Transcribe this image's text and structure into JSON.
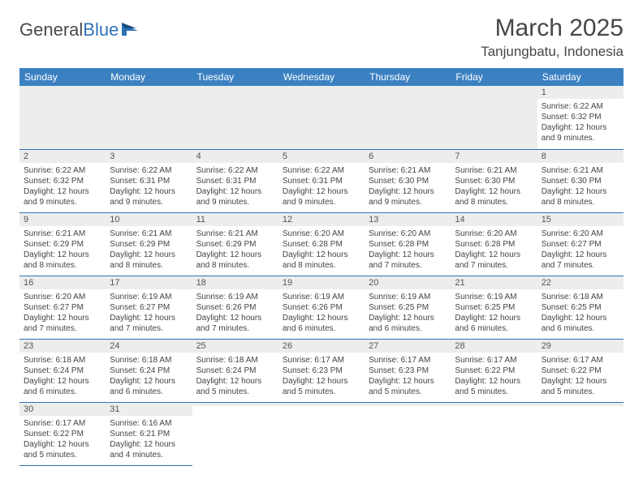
{
  "logo": {
    "text1": "General",
    "text2": "Blue"
  },
  "title": "March 2025",
  "location": "Tanjungbatu, Indonesia",
  "day_headers": [
    "Sunday",
    "Monday",
    "Tuesday",
    "Wednesday",
    "Thursday",
    "Friday",
    "Saturday"
  ],
  "colors": {
    "header_bg": "#3b81c2",
    "header_fg": "#ffffff",
    "rule": "#2f72b8",
    "daynum_bg": "#eceded",
    "text": "#444444"
  },
  "weeks": [
    [
      {
        "n": "",
        "sr": "",
        "ss": "",
        "dl": ""
      },
      {
        "n": "",
        "sr": "",
        "ss": "",
        "dl": ""
      },
      {
        "n": "",
        "sr": "",
        "ss": "",
        "dl": ""
      },
      {
        "n": "",
        "sr": "",
        "ss": "",
        "dl": ""
      },
      {
        "n": "",
        "sr": "",
        "ss": "",
        "dl": ""
      },
      {
        "n": "",
        "sr": "",
        "ss": "",
        "dl": ""
      },
      {
        "n": "1",
        "sr": "Sunrise: 6:22 AM",
        "ss": "Sunset: 6:32 PM",
        "dl": "Daylight: 12 hours and 9 minutes."
      }
    ],
    [
      {
        "n": "2",
        "sr": "Sunrise: 6:22 AM",
        "ss": "Sunset: 6:32 PM",
        "dl": "Daylight: 12 hours and 9 minutes."
      },
      {
        "n": "3",
        "sr": "Sunrise: 6:22 AM",
        "ss": "Sunset: 6:31 PM",
        "dl": "Daylight: 12 hours and 9 minutes."
      },
      {
        "n": "4",
        "sr": "Sunrise: 6:22 AM",
        "ss": "Sunset: 6:31 PM",
        "dl": "Daylight: 12 hours and 9 minutes."
      },
      {
        "n": "5",
        "sr": "Sunrise: 6:22 AM",
        "ss": "Sunset: 6:31 PM",
        "dl": "Daylight: 12 hours and 9 minutes."
      },
      {
        "n": "6",
        "sr": "Sunrise: 6:21 AM",
        "ss": "Sunset: 6:30 PM",
        "dl": "Daylight: 12 hours and 9 minutes."
      },
      {
        "n": "7",
        "sr": "Sunrise: 6:21 AM",
        "ss": "Sunset: 6:30 PM",
        "dl": "Daylight: 12 hours and 8 minutes."
      },
      {
        "n": "8",
        "sr": "Sunrise: 6:21 AM",
        "ss": "Sunset: 6:30 PM",
        "dl": "Daylight: 12 hours and 8 minutes."
      }
    ],
    [
      {
        "n": "9",
        "sr": "Sunrise: 6:21 AM",
        "ss": "Sunset: 6:29 PM",
        "dl": "Daylight: 12 hours and 8 minutes."
      },
      {
        "n": "10",
        "sr": "Sunrise: 6:21 AM",
        "ss": "Sunset: 6:29 PM",
        "dl": "Daylight: 12 hours and 8 minutes."
      },
      {
        "n": "11",
        "sr": "Sunrise: 6:21 AM",
        "ss": "Sunset: 6:29 PM",
        "dl": "Daylight: 12 hours and 8 minutes."
      },
      {
        "n": "12",
        "sr": "Sunrise: 6:20 AM",
        "ss": "Sunset: 6:28 PM",
        "dl": "Daylight: 12 hours and 8 minutes."
      },
      {
        "n": "13",
        "sr": "Sunrise: 6:20 AM",
        "ss": "Sunset: 6:28 PM",
        "dl": "Daylight: 12 hours and 7 minutes."
      },
      {
        "n": "14",
        "sr": "Sunrise: 6:20 AM",
        "ss": "Sunset: 6:28 PM",
        "dl": "Daylight: 12 hours and 7 minutes."
      },
      {
        "n": "15",
        "sr": "Sunrise: 6:20 AM",
        "ss": "Sunset: 6:27 PM",
        "dl": "Daylight: 12 hours and 7 minutes."
      }
    ],
    [
      {
        "n": "16",
        "sr": "Sunrise: 6:20 AM",
        "ss": "Sunset: 6:27 PM",
        "dl": "Daylight: 12 hours and 7 minutes."
      },
      {
        "n": "17",
        "sr": "Sunrise: 6:19 AM",
        "ss": "Sunset: 6:27 PM",
        "dl": "Daylight: 12 hours and 7 minutes."
      },
      {
        "n": "18",
        "sr": "Sunrise: 6:19 AM",
        "ss": "Sunset: 6:26 PM",
        "dl": "Daylight: 12 hours and 7 minutes."
      },
      {
        "n": "19",
        "sr": "Sunrise: 6:19 AM",
        "ss": "Sunset: 6:26 PM",
        "dl": "Daylight: 12 hours and 6 minutes."
      },
      {
        "n": "20",
        "sr": "Sunrise: 6:19 AM",
        "ss": "Sunset: 6:25 PM",
        "dl": "Daylight: 12 hours and 6 minutes."
      },
      {
        "n": "21",
        "sr": "Sunrise: 6:19 AM",
        "ss": "Sunset: 6:25 PM",
        "dl": "Daylight: 12 hours and 6 minutes."
      },
      {
        "n": "22",
        "sr": "Sunrise: 6:18 AM",
        "ss": "Sunset: 6:25 PM",
        "dl": "Daylight: 12 hours and 6 minutes."
      }
    ],
    [
      {
        "n": "23",
        "sr": "Sunrise: 6:18 AM",
        "ss": "Sunset: 6:24 PM",
        "dl": "Daylight: 12 hours and 6 minutes."
      },
      {
        "n": "24",
        "sr": "Sunrise: 6:18 AM",
        "ss": "Sunset: 6:24 PM",
        "dl": "Daylight: 12 hours and 6 minutes."
      },
      {
        "n": "25",
        "sr": "Sunrise: 6:18 AM",
        "ss": "Sunset: 6:24 PM",
        "dl": "Daylight: 12 hours and 5 minutes."
      },
      {
        "n": "26",
        "sr": "Sunrise: 6:17 AM",
        "ss": "Sunset: 6:23 PM",
        "dl": "Daylight: 12 hours and 5 minutes."
      },
      {
        "n": "27",
        "sr": "Sunrise: 6:17 AM",
        "ss": "Sunset: 6:23 PM",
        "dl": "Daylight: 12 hours and 5 minutes."
      },
      {
        "n": "28",
        "sr": "Sunrise: 6:17 AM",
        "ss": "Sunset: 6:22 PM",
        "dl": "Daylight: 12 hours and 5 minutes."
      },
      {
        "n": "29",
        "sr": "Sunrise: 6:17 AM",
        "ss": "Sunset: 6:22 PM",
        "dl": "Daylight: 12 hours and 5 minutes."
      }
    ],
    [
      {
        "n": "30",
        "sr": "Sunrise: 6:17 AM",
        "ss": "Sunset: 6:22 PM",
        "dl": "Daylight: 12 hours and 5 minutes."
      },
      {
        "n": "31",
        "sr": "Sunrise: 6:16 AM",
        "ss": "Sunset: 6:21 PM",
        "dl": "Daylight: 12 hours and 4 minutes."
      },
      {
        "n": "",
        "sr": "",
        "ss": "",
        "dl": ""
      },
      {
        "n": "",
        "sr": "",
        "ss": "",
        "dl": ""
      },
      {
        "n": "",
        "sr": "",
        "ss": "",
        "dl": ""
      },
      {
        "n": "",
        "sr": "",
        "ss": "",
        "dl": ""
      },
      {
        "n": "",
        "sr": "",
        "ss": "",
        "dl": ""
      }
    ]
  ]
}
